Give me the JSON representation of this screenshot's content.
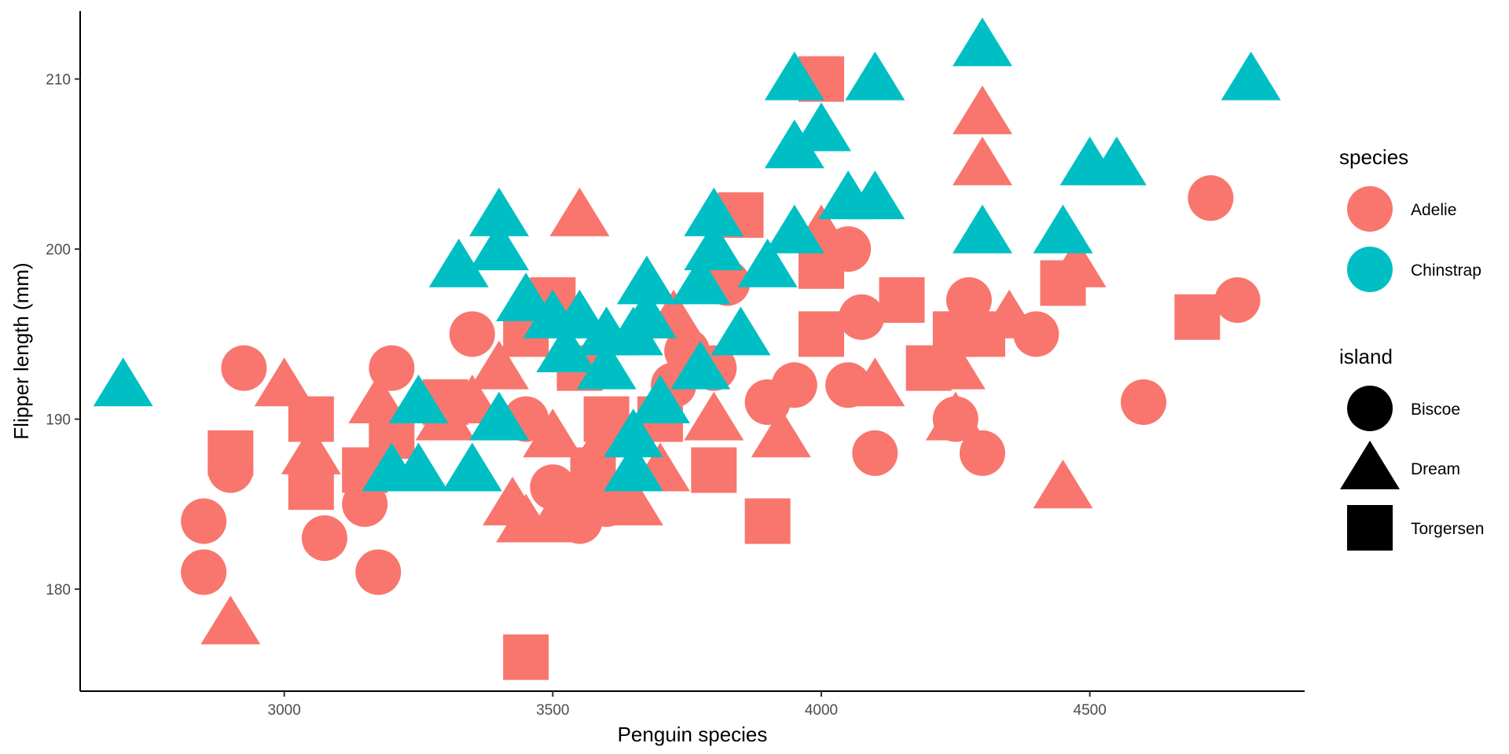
{
  "chart_data": {
    "type": "scatter",
    "title": "",
    "xlabel": "Penguin species",
    "ylabel": "Flipper length (mm)",
    "xlim": [
      2620,
      4900
    ],
    "ylim": [
      174,
      214
    ],
    "x_ticks": [
      3000,
      3500,
      4000,
      4500
    ],
    "y_ticks": [
      180,
      190,
      200,
      210
    ],
    "grid": false,
    "legend_position": "right",
    "colors": {
      "Adelie": "#F8766D",
      "Chinstrap": "#00BFC4"
    },
    "shapes": {
      "Biscoe": "circle",
      "Dream": "triangle",
      "Torgersen": "square"
    },
    "legends": [
      {
        "title": "species",
        "items": [
          "Adelie",
          "Chinstrap"
        ]
      },
      {
        "title": "island",
        "items": [
          "Biscoe",
          "Dream",
          "Torgersen"
        ]
      }
    ],
    "points": [
      {
        "x": 2850,
        "y": 184,
        "species": "Adelie",
        "island": "Biscoe"
      },
      {
        "x": 2850,
        "y": 181,
        "species": "Adelie",
        "island": "Biscoe"
      },
      {
        "x": 2900,
        "y": 187,
        "species": "Adelie",
        "island": "Biscoe"
      },
      {
        "x": 2925,
        "y": 193,
        "species": "Adelie",
        "island": "Biscoe"
      },
      {
        "x": 3075,
        "y": 183,
        "species": "Adelie",
        "island": "Biscoe"
      },
      {
        "x": 3150,
        "y": 185,
        "species": "Adelie",
        "island": "Biscoe"
      },
      {
        "x": 3175,
        "y": 181,
        "species": "Adelie",
        "island": "Biscoe"
      },
      {
        "x": 3200,
        "y": 193,
        "species": "Adelie",
        "island": "Biscoe"
      },
      {
        "x": 3350,
        "y": 195,
        "species": "Adelie",
        "island": "Biscoe"
      },
      {
        "x": 3450,
        "y": 190,
        "species": "Adelie",
        "island": "Biscoe"
      },
      {
        "x": 3500,
        "y": 186,
        "species": "Adelie",
        "island": "Biscoe"
      },
      {
        "x": 3550,
        "y": 184,
        "species": "Adelie",
        "island": "Biscoe"
      },
      {
        "x": 3600,
        "y": 185,
        "species": "Adelie",
        "island": "Biscoe"
      },
      {
        "x": 3725,
        "y": 192,
        "species": "Adelie",
        "island": "Biscoe"
      },
      {
        "x": 3750,
        "y": 194,
        "species": "Adelie",
        "island": "Biscoe"
      },
      {
        "x": 3800,
        "y": 193,
        "species": "Adelie",
        "island": "Biscoe"
      },
      {
        "x": 3825,
        "y": 198,
        "species": "Adelie",
        "island": "Biscoe"
      },
      {
        "x": 3900,
        "y": 191,
        "species": "Adelie",
        "island": "Biscoe"
      },
      {
        "x": 3950,
        "y": 192,
        "species": "Adelie",
        "island": "Biscoe"
      },
      {
        "x": 4000,
        "y": 200,
        "species": "Adelie",
        "island": "Biscoe"
      },
      {
        "x": 4050,
        "y": 192,
        "species": "Adelie",
        "island": "Biscoe"
      },
      {
        "x": 4050,
        "y": 200,
        "species": "Adelie",
        "island": "Biscoe"
      },
      {
        "x": 4075,
        "y": 196,
        "species": "Adelie",
        "island": "Biscoe"
      },
      {
        "x": 4100,
        "y": 188,
        "species": "Adelie",
        "island": "Biscoe"
      },
      {
        "x": 4250,
        "y": 190,
        "species": "Adelie",
        "island": "Biscoe"
      },
      {
        "x": 4275,
        "y": 197,
        "species": "Adelie",
        "island": "Biscoe"
      },
      {
        "x": 4300,
        "y": 188,
        "species": "Adelie",
        "island": "Biscoe"
      },
      {
        "x": 4400,
        "y": 195,
        "species": "Adelie",
        "island": "Biscoe"
      },
      {
        "x": 4600,
        "y": 191,
        "species": "Adelie",
        "island": "Biscoe"
      },
      {
        "x": 4725,
        "y": 203,
        "species": "Adelie",
        "island": "Biscoe"
      },
      {
        "x": 4775,
        "y": 197,
        "species": "Adelie",
        "island": "Biscoe"
      },
      {
        "x": 2900,
        "y": 178,
        "species": "Adelie",
        "island": "Dream"
      },
      {
        "x": 3000,
        "y": 192,
        "species": "Adelie",
        "island": "Dream"
      },
      {
        "x": 3050,
        "y": 188,
        "species": "Adelie",
        "island": "Dream"
      },
      {
        "x": 3175,
        "y": 191,
        "species": "Adelie",
        "island": "Dream"
      },
      {
        "x": 3300,
        "y": 190,
        "species": "Adelie",
        "island": "Dream"
      },
      {
        "x": 3350,
        "y": 191,
        "species": "Adelie",
        "island": "Dream"
      },
      {
        "x": 3400,
        "y": 193,
        "species": "Adelie",
        "island": "Dream"
      },
      {
        "x": 3425,
        "y": 185,
        "species": "Adelie",
        "island": "Dream"
      },
      {
        "x": 3450,
        "y": 184,
        "species": "Adelie",
        "island": "Dream"
      },
      {
        "x": 3500,
        "y": 189,
        "species": "Adelie",
        "island": "Dream"
      },
      {
        "x": 3500,
        "y": 184,
        "species": "Adelie",
        "island": "Dream"
      },
      {
        "x": 3550,
        "y": 202,
        "species": "Adelie",
        "island": "Dream"
      },
      {
        "x": 3575,
        "y": 186,
        "species": "Adelie",
        "island": "Dream"
      },
      {
        "x": 3600,
        "y": 189,
        "species": "Adelie",
        "island": "Dream"
      },
      {
        "x": 3650,
        "y": 185,
        "species": "Adelie",
        "island": "Dream"
      },
      {
        "x": 3700,
        "y": 187,
        "species": "Adelie",
        "island": "Dream"
      },
      {
        "x": 3725,
        "y": 196,
        "species": "Adelie",
        "island": "Dream"
      },
      {
        "x": 3800,
        "y": 190,
        "species": "Adelie",
        "island": "Dream"
      },
      {
        "x": 3925,
        "y": 189,
        "species": "Adelie",
        "island": "Dream"
      },
      {
        "x": 4000,
        "y": 201,
        "species": "Adelie",
        "island": "Dream"
      },
      {
        "x": 4100,
        "y": 192,
        "species": "Adelie",
        "island": "Dream"
      },
      {
        "x": 4250,
        "y": 190,
        "species": "Adelie",
        "island": "Dream"
      },
      {
        "x": 4300,
        "y": 205,
        "species": "Adelie",
        "island": "Dream"
      },
      {
        "x": 4300,
        "y": 208,
        "species": "Adelie",
        "island": "Dream"
      },
      {
        "x": 4350,
        "y": 196,
        "species": "Adelie",
        "island": "Dream"
      },
      {
        "x": 4450,
        "y": 186,
        "species": "Adelie",
        "island": "Dream"
      },
      {
        "x": 4475,
        "y": 199,
        "species": "Adelie",
        "island": "Dream"
      },
      {
        "x": 4250,
        "y": 193,
        "species": "Adelie",
        "island": "Dream"
      },
      {
        "x": 2900,
        "y": 188,
        "species": "Adelie",
        "island": "Torgersen"
      },
      {
        "x": 3050,
        "y": 190,
        "species": "Adelie",
        "island": "Torgersen"
      },
      {
        "x": 3050,
        "y": 186,
        "species": "Adelie",
        "island": "Torgersen"
      },
      {
        "x": 3150,
        "y": 187,
        "species": "Adelie",
        "island": "Torgersen"
      },
      {
        "x": 3200,
        "y": 189,
        "species": "Adelie",
        "island": "Torgersen"
      },
      {
        "x": 3300,
        "y": 191,
        "species": "Adelie",
        "island": "Torgersen"
      },
      {
        "x": 3450,
        "y": 176,
        "species": "Adelie",
        "island": "Torgersen"
      },
      {
        "x": 3450,
        "y": 195,
        "species": "Adelie",
        "island": "Torgersen"
      },
      {
        "x": 3500,
        "y": 197,
        "species": "Adelie",
        "island": "Torgersen"
      },
      {
        "x": 3550,
        "y": 193,
        "species": "Adelie",
        "island": "Torgersen"
      },
      {
        "x": 3575,
        "y": 187,
        "species": "Adelie",
        "island": "Torgersen"
      },
      {
        "x": 3600,
        "y": 190,
        "species": "Adelie",
        "island": "Torgersen"
      },
      {
        "x": 3700,
        "y": 190,
        "species": "Adelie",
        "island": "Torgersen"
      },
      {
        "x": 3800,
        "y": 187,
        "species": "Adelie",
        "island": "Torgersen"
      },
      {
        "x": 3850,
        "y": 202,
        "species": "Adelie",
        "island": "Torgersen"
      },
      {
        "x": 3900,
        "y": 184,
        "species": "Adelie",
        "island": "Torgersen"
      },
      {
        "x": 4000,
        "y": 195,
        "species": "Adelie",
        "island": "Torgersen"
      },
      {
        "x": 4000,
        "y": 199,
        "species": "Adelie",
        "island": "Torgersen"
      },
      {
        "x": 4000,
        "y": 210,
        "species": "Adelie",
        "island": "Torgersen"
      },
      {
        "x": 4150,
        "y": 197,
        "species": "Adelie",
        "island": "Torgersen"
      },
      {
        "x": 4200,
        "y": 193,
        "species": "Adelie",
        "island": "Torgersen"
      },
      {
        "x": 4250,
        "y": 195,
        "species": "Adelie",
        "island": "Torgersen"
      },
      {
        "x": 4300,
        "y": 195,
        "species": "Adelie",
        "island": "Torgersen"
      },
      {
        "x": 4450,
        "y": 198,
        "species": "Adelie",
        "island": "Torgersen"
      },
      {
        "x": 4700,
        "y": 196,
        "species": "Adelie",
        "island": "Torgersen"
      },
      {
        "x": 2700,
        "y": 192,
        "species": "Chinstrap",
        "island": "Dream"
      },
      {
        "x": 3200,
        "y": 187,
        "species": "Chinstrap",
        "island": "Dream"
      },
      {
        "x": 3250,
        "y": 187,
        "species": "Chinstrap",
        "island": "Dream"
      },
      {
        "x": 3250,
        "y": 191,
        "species": "Chinstrap",
        "island": "Dream"
      },
      {
        "x": 3325,
        "y": 199,
        "species": "Chinstrap",
        "island": "Dream"
      },
      {
        "x": 3350,
        "y": 187,
        "species": "Chinstrap",
        "island": "Dream"
      },
      {
        "x": 3400,
        "y": 190,
        "species": "Chinstrap",
        "island": "Dream"
      },
      {
        "x": 3400,
        "y": 200,
        "species": "Chinstrap",
        "island": "Dream"
      },
      {
        "x": 3400,
        "y": 202,
        "species": "Chinstrap",
        "island": "Dream"
      },
      {
        "x": 3450,
        "y": 197,
        "species": "Chinstrap",
        "island": "Dream"
      },
      {
        "x": 3500,
        "y": 196,
        "species": "Chinstrap",
        "island": "Dream"
      },
      {
        "x": 3525,
        "y": 194,
        "species": "Chinstrap",
        "island": "Dream"
      },
      {
        "x": 3550,
        "y": 196,
        "species": "Chinstrap",
        "island": "Dream"
      },
      {
        "x": 3600,
        "y": 195,
        "species": "Chinstrap",
        "island": "Dream"
      },
      {
        "x": 3600,
        "y": 193,
        "species": "Chinstrap",
        "island": "Dream"
      },
      {
        "x": 3650,
        "y": 187,
        "species": "Chinstrap",
        "island": "Dream"
      },
      {
        "x": 3650,
        "y": 189,
        "species": "Chinstrap",
        "island": "Dream"
      },
      {
        "x": 3650,
        "y": 195,
        "species": "Chinstrap",
        "island": "Dream"
      },
      {
        "x": 3675,
        "y": 198,
        "species": "Chinstrap",
        "island": "Dream"
      },
      {
        "x": 3675,
        "y": 196,
        "species": "Chinstrap",
        "island": "Dream"
      },
      {
        "x": 3700,
        "y": 191,
        "species": "Chinstrap",
        "island": "Dream"
      },
      {
        "x": 3775,
        "y": 193,
        "species": "Chinstrap",
        "island": "Dream"
      },
      {
        "x": 3775,
        "y": 198,
        "species": "Chinstrap",
        "island": "Dream"
      },
      {
        "x": 3800,
        "y": 200,
        "species": "Chinstrap",
        "island": "Dream"
      },
      {
        "x": 3800,
        "y": 202,
        "species": "Chinstrap",
        "island": "Dream"
      },
      {
        "x": 3850,
        "y": 195,
        "species": "Chinstrap",
        "island": "Dream"
      },
      {
        "x": 3900,
        "y": 199,
        "species": "Chinstrap",
        "island": "Dream"
      },
      {
        "x": 3950,
        "y": 201,
        "species": "Chinstrap",
        "island": "Dream"
      },
      {
        "x": 3950,
        "y": 206,
        "species": "Chinstrap",
        "island": "Dream"
      },
      {
        "x": 3950,
        "y": 210,
        "species": "Chinstrap",
        "island": "Dream"
      },
      {
        "x": 4000,
        "y": 207,
        "species": "Chinstrap",
        "island": "Dream"
      },
      {
        "x": 4050,
        "y": 203,
        "species": "Chinstrap",
        "island": "Dream"
      },
      {
        "x": 4100,
        "y": 203,
        "species": "Chinstrap",
        "island": "Dream"
      },
      {
        "x": 4100,
        "y": 210,
        "species": "Chinstrap",
        "island": "Dream"
      },
      {
        "x": 4300,
        "y": 201,
        "species": "Chinstrap",
        "island": "Dream"
      },
      {
        "x": 4300,
        "y": 212,
        "species": "Chinstrap",
        "island": "Dream"
      },
      {
        "x": 4450,
        "y": 201,
        "species": "Chinstrap",
        "island": "Dream"
      },
      {
        "x": 4500,
        "y": 205,
        "species": "Chinstrap",
        "island": "Dream"
      },
      {
        "x": 4550,
        "y": 205,
        "species": "Chinstrap",
        "island": "Dream"
      },
      {
        "x": 4800,
        "y": 210,
        "species": "Chinstrap",
        "island": "Dream"
      }
    ]
  }
}
